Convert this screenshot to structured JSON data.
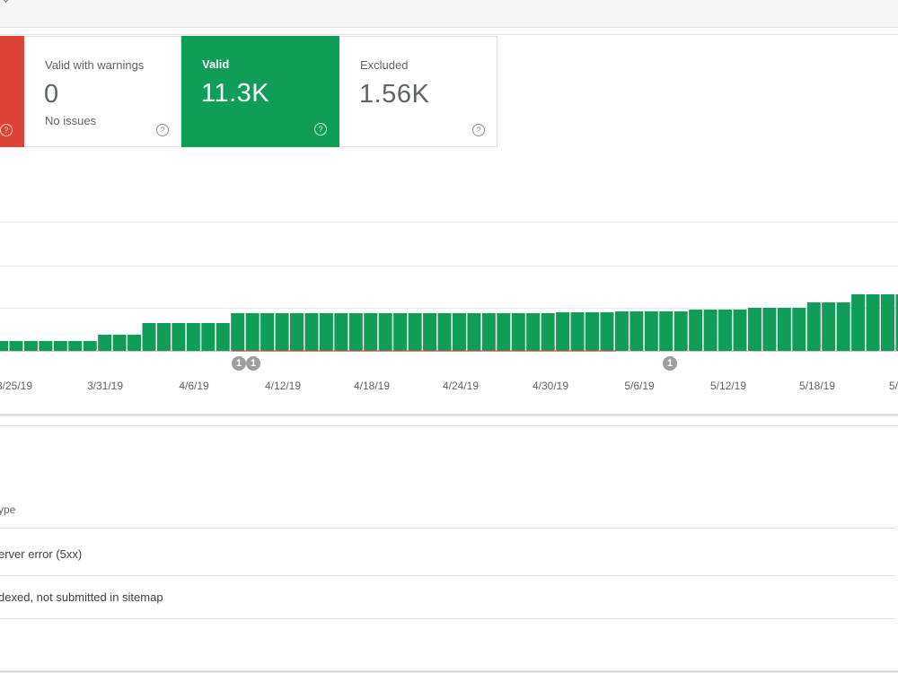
{
  "summary": {
    "error": {
      "help_glyph": "?"
    },
    "warnings": {
      "label": "Valid with warnings",
      "value": "0",
      "sub": "No issues",
      "help_glyph": "?"
    },
    "valid": {
      "label": "Valid",
      "value": "11.3K",
      "help_glyph": "?"
    },
    "excluded": {
      "label": "Excluded",
      "value": "1.56K",
      "help_glyph": "?"
    }
  },
  "colors": {
    "valid": "#0f9d58",
    "error": "#db4437",
    "grid": "#e6e6e6"
  },
  "chart_data": {
    "type": "bar",
    "x_tick_labels": [
      "3/25/19",
      "3/31/19",
      "4/6/19",
      "4/12/19",
      "4/18/19",
      "4/24/19",
      "4/30/19",
      "5/6/19",
      "5/12/19",
      "5/18/19",
      "5/"
    ],
    "series": [
      {
        "values": [
          11,
          11,
          11,
          11,
          11,
          11,
          11,
          18,
          18,
          18,
          31,
          31,
          31,
          31,
          31,
          31,
          42,
          42,
          42,
          42,
          42,
          42,
          42,
          42,
          42,
          42,
          42,
          42,
          42,
          42,
          42,
          42,
          42,
          42,
          42,
          42,
          42,
          42,
          43,
          43,
          43,
          43,
          44,
          44,
          44,
          44,
          44,
          46,
          46,
          46,
          46,
          48,
          48,
          48,
          48,
          54,
          54,
          54,
          63,
          63,
          63,
          63,
          78,
          78,
          78,
          78,
          78,
          78
        ]
      }
    ],
    "annotations": [
      {
        "label": "1"
      },
      {
        "label": "1"
      },
      {
        "label": "1"
      }
    ],
    "grid": true
  },
  "table": {
    "header": "ype",
    "rows": [
      {
        "label": "erver error (5xx)"
      },
      {
        "label": "dexed, not submitted in sitemap"
      }
    ]
  }
}
